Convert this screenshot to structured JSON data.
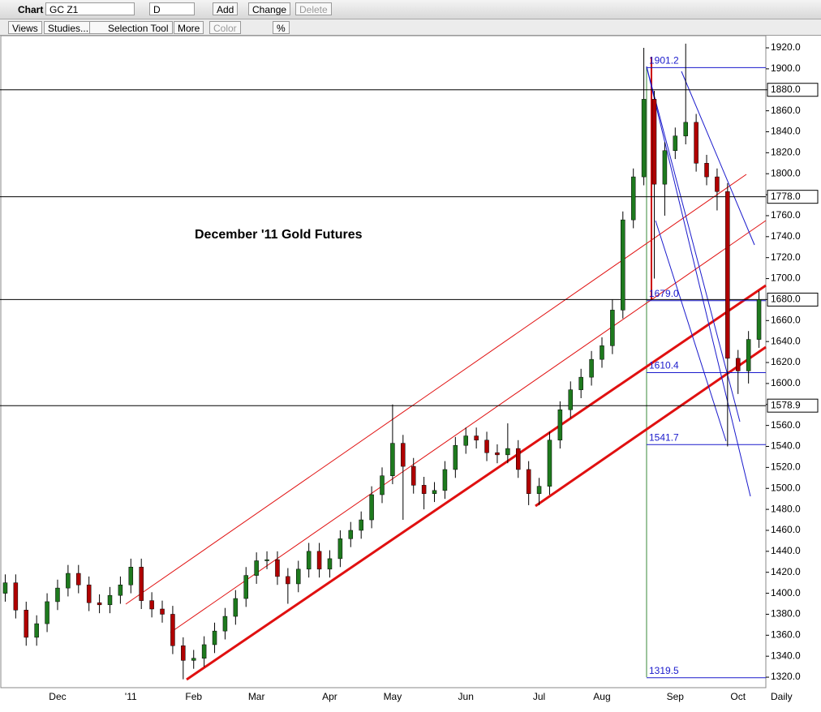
{
  "toolbar": {
    "chart_label": "Chart",
    "symbol": "GC Z1",
    "period": "D",
    "add": "Add",
    "change": "Change",
    "delete": "Delete",
    "views": "Views",
    "studies": "Studies...",
    "selection_tool": "Selection Tool",
    "more": "More",
    "color": "Color",
    "percent": "%"
  },
  "chart_data": {
    "type": "candlestick",
    "annotation": "December '11 Gold Futures",
    "x_label": "Daily",
    "up_color": "#1e7a1e",
    "down_color": "#b00000",
    "categories": [
      null,
      null,
      null,
      null,
      null,
      "Dec",
      null,
      null,
      null,
      null,
      null,
      null,
      "'11",
      null,
      null,
      null,
      null,
      null,
      "Feb",
      null,
      null,
      null,
      null,
      null,
      "Mar",
      null,
      null,
      null,
      null,
      null,
      null,
      "Apr",
      null,
      null,
      null,
      null,
      null,
      "May",
      null,
      null,
      null,
      null,
      null,
      null,
      "Jun",
      null,
      null,
      null,
      null,
      null,
      null,
      "Jul",
      null,
      null,
      null,
      null,
      null,
      "Aug",
      null,
      null,
      null,
      null,
      null,
      null,
      "Sep",
      null,
      null,
      null,
      null,
      null,
      "Oct",
      null,
      null
    ],
    "open": [
      1400,
      1410,
      1384,
      1358,
      1371,
      1392,
      1405,
      1419,
      1408,
      1391,
      1389,
      1398,
      1408,
      1425,
      1393,
      1385,
      1380,
      1350,
      1336,
      1338,
      1351,
      1364,
      1378,
      1395,
      1417,
      1431,
      1432,
      1416,
      1409,
      1423,
      1440,
      1423,
      1433,
      1452,
      1460,
      1470,
      1494,
      1512,
      1543,
      1521,
      1503,
      1495,
      1498,
      1518,
      1541,
      1550,
      1546,
      1534,
      1532,
      1538,
      1518,
      1495,
      1502,
      1546,
      1575,
      1594,
      1606,
      1623,
      1636,
      1670,
      1756,
      1797,
      1871,
      1790,
      1822,
      1836,
      1849,
      1810,
      1797,
      1783,
      1624,
      1612,
      1642
    ],
    "high": [
      1418,
      1418,
      1392,
      1379,
      1400,
      1413,
      1427,
      1427,
      1416,
      1399,
      1406,
      1416,
      1433,
      1433,
      1401,
      1393,
      1388,
      1358,
      1346,
      1359,
      1372,
      1386,
      1403,
      1425,
      1439,
      1440,
      1440,
      1424,
      1431,
      1448,
      1448,
      1441,
      1460,
      1468,
      1478,
      1502,
      1520,
      1580,
      1551,
      1529,
      1511,
      1506,
      1526,
      1549,
      1558,
      1558,
      1554,
      1542,
      1562,
      1546,
      1526,
      1510,
      1554,
      1583,
      1602,
      1614,
      1631,
      1644,
      1680,
      1764,
      1805,
      1920,
      1879,
      1830,
      1844,
      1924,
      1857,
      1818,
      1805,
      1791,
      1632,
      1650,
      1688
    ],
    "low": [
      1392,
      1376,
      1350,
      1350,
      1363,
      1384,
      1397,
      1400,
      1383,
      1381,
      1381,
      1390,
      1400,
      1385,
      1377,
      1372,
      1342,
      1318,
      1328,
      1330,
      1343,
      1356,
      1370,
      1387,
      1409,
      1423,
      1408,
      1390,
      1401,
      1415,
      1415,
      1415,
      1425,
      1444,
      1452,
      1462,
      1486,
      1504,
      1470,
      1495,
      1480,
      1487,
      1490,
      1510,
      1533,
      1538,
      1526,
      1524,
      1524,
      1510,
      1484,
      1484,
      1494,
      1538,
      1567,
      1586,
      1598,
      1615,
      1628,
      1662,
      1748,
      1789,
      1700,
      1760,
      1814,
      1828,
      1802,
      1789,
      1765,
      1540,
      1590,
      1600,
      1634
    ],
    "close": [
      1410,
      1384,
      1358,
      1371,
      1392,
      1405,
      1419,
      1408,
      1391,
      1389,
      1398,
      1408,
      1425,
      1393,
      1385,
      1380,
      1350,
      1336,
      1338,
      1351,
      1364,
      1378,
      1395,
      1417,
      1431,
      1432,
      1416,
      1409,
      1423,
      1440,
      1423,
      1433,
      1452,
      1460,
      1470,
      1494,
      1512,
      1543,
      1521,
      1503,
      1495,
      1498,
      1518,
      1541,
      1550,
      1546,
      1534,
      1532,
      1538,
      1518,
      1495,
      1502,
      1546,
      1575,
      1594,
      1606,
      1623,
      1636,
      1670,
      1756,
      1797,
      1871,
      1790,
      1822,
      1836,
      1849,
      1810,
      1797,
      1783,
      1624,
      1612,
      1642,
      1680
    ],
    "ylim": [
      1310,
      1931.6
    ],
    "yticks": [
      {
        "value": 1320,
        "label": "1320.0"
      },
      {
        "value": 1340,
        "label": "1340.0"
      },
      {
        "value": 1360,
        "label": "1360.0"
      },
      {
        "value": 1380,
        "label": "1380.0"
      },
      {
        "value": 1400,
        "label": "1400.0"
      },
      {
        "value": 1420,
        "label": "1420.0"
      },
      {
        "value": 1440,
        "label": "1440.0"
      },
      {
        "value": 1460,
        "label": "1460.0"
      },
      {
        "value": 1480,
        "label": "1480.0"
      },
      {
        "value": 1500,
        "label": "1500.0"
      },
      {
        "value": 1520,
        "label": "1520.0"
      },
      {
        "value": 1540,
        "label": "1540.0"
      },
      {
        "value": 1560,
        "label": "1560.0"
      },
      {
        "value": 1580,
        "label": "1580.0"
      },
      {
        "value": 1600,
        "label": "1600.0"
      },
      {
        "value": 1620,
        "label": "1620.0"
      },
      {
        "value": 1640,
        "label": "1640.0"
      },
      {
        "value": 1660,
        "label": "1660.0"
      },
      {
        "value": 1680,
        "label": "1680.0"
      },
      {
        "value": 1700,
        "label": "1700.0"
      },
      {
        "value": 1720,
        "label": "1720.0"
      },
      {
        "value": 1740,
        "label": "1740.0"
      },
      {
        "value": 1760,
        "label": "1760.0"
      },
      {
        "value": 1780,
        "label": "1780.0"
      },
      {
        "value": 1800,
        "label": "1800.0"
      },
      {
        "value": 1820,
        "label": "1820.0"
      },
      {
        "value": 1840,
        "label": "1840.0"
      },
      {
        "value": 1860,
        "label": "1860.0"
      },
      {
        "value": 1880,
        "label": "1880.0"
      },
      {
        "value": 1900,
        "label": "1900.0"
      },
      {
        "value": 1920,
        "label": "1920.0"
      }
    ],
    "hlines": [
      {
        "value": 1880,
        "label": "1880.0"
      },
      {
        "value": 1778,
        "label": "1778.0"
      },
      {
        "value": 1680,
        "label": "1680.0"
      },
      {
        "value": 1578.9,
        "label": "1578.9"
      }
    ],
    "fib_levels": [
      {
        "value": 1901.2,
        "label": "1901.2"
      },
      {
        "value": 1679,
        "label": "1679.0"
      },
      {
        "value": 1610.4,
        "label": "1610.4"
      },
      {
        "value": 1541.7,
        "label": "1541.7"
      },
      {
        "value": 1319.5,
        "label": "1319.5"
      }
    ]
  }
}
